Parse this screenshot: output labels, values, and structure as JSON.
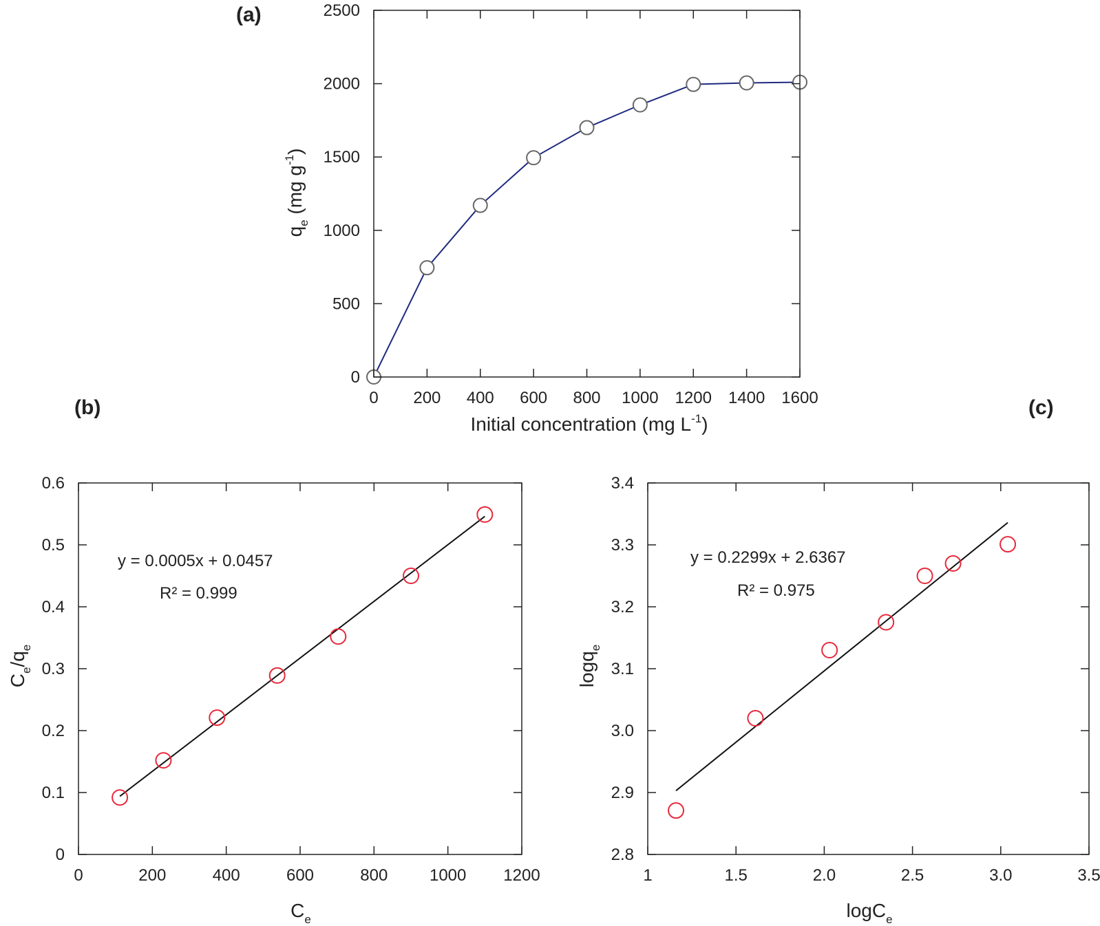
{
  "panels": [
    {
      "id": "a",
      "label": "(a)"
    },
    {
      "id": "b",
      "label": "(b)"
    },
    {
      "id": "c",
      "label": "(c)"
    }
  ],
  "chart_data": [
    {
      "id": "a",
      "type": "line",
      "xlabel": {
        "main": "Initial concentration (mg L",
        "sup": "-1",
        "tail": ")"
      },
      "ylabel": {
        "main": "q",
        "sub": "e",
        "tail": " (mg g",
        "sup": "-1",
        "end": ")"
      },
      "xlim": [
        0,
        1600
      ],
      "ylim": [
        0,
        2500
      ],
      "xticks": [
        0,
        200,
        400,
        600,
        800,
        1000,
        1200,
        1400,
        1600
      ],
      "yticks": [
        0,
        500,
        1000,
        1500,
        2000,
        2500
      ],
      "xtick_labels": [
        "0",
        "200",
        "400",
        "600",
        "800",
        "1000",
        "1200",
        "1400",
        "1600"
      ],
      "ytick_labels": [
        "0",
        "500",
        "1000",
        "1500",
        "2000",
        "2500"
      ],
      "x": [
        0,
        200,
        400,
        600,
        800,
        1000,
        1200,
        1400,
        1600
      ],
      "y": [
        0,
        745,
        1170,
        1495,
        1700,
        1855,
        1995,
        2005,
        2010
      ],
      "colors": {
        "line": "#1f2a80",
        "marker_stroke": "#666666",
        "marker_fill": "#ffffff"
      },
      "grid": false
    },
    {
      "id": "b",
      "type": "scatter",
      "xlabel": {
        "main": "C",
        "sub": "e"
      },
      "ylabel": {
        "main": "C",
        "sub": "e",
        "mid": "/q",
        "sub2": "e"
      },
      "xlim": [
        0,
        1200
      ],
      "ylim": [
        0,
        0.6
      ],
      "xticks": [
        0,
        200,
        400,
        600,
        800,
        1000,
        1200
      ],
      "yticks": [
        0,
        0.1,
        0.2,
        0.3,
        0.4,
        0.5,
        0.6
      ],
      "xtick_labels": [
        "0",
        "200",
        "400",
        "600",
        "800",
        "1000",
        "1200"
      ],
      "ytick_labels": [
        "0",
        "0.1",
        "0.2",
        "0.3",
        "0.4",
        "0.5",
        "0.6"
      ],
      "x": [
        112,
        230,
        375,
        538,
        703,
        900,
        1100
      ],
      "y": [
        0.092,
        0.152,
        0.221,
        0.289,
        0.352,
        0.45,
        0.549
      ],
      "fit": {
        "x": [
          112,
          1100
        ],
        "y": [
          0.094,
          0.546
        ]
      },
      "equation": "y = 0.0005x + 0.0457",
      "r2": "R² = 0.999",
      "colors": {
        "marker": "#e8283a",
        "fit": "#111111"
      },
      "grid": false
    },
    {
      "id": "c",
      "type": "scatter",
      "xlabel": {
        "main": "logC",
        "sub": "e"
      },
      "ylabel": {
        "main": "logq",
        "sub": "e"
      },
      "xlim": [
        1,
        3.5
      ],
      "ylim": [
        2.8,
        3.4
      ],
      "xticks": [
        1,
        1.5,
        2.0,
        2.5,
        3.0,
        3.5
      ],
      "yticks": [
        2.8,
        2.9,
        3.0,
        3.1,
        3.2,
        3.3,
        3.4
      ],
      "xtick_labels": [
        "1",
        "1.5",
        "2.0",
        "2.5",
        "3.0",
        "3.5"
      ],
      "ytick_labels": [
        "2.8",
        "2.9",
        "3.0",
        "3.1",
        "3.2",
        "3.3",
        "3.4"
      ],
      "x": [
        1.16,
        1.61,
        2.03,
        2.35,
        2.57,
        2.73,
        3.04
      ],
      "y": [
        2.871,
        3.02,
        3.13,
        3.175,
        3.25,
        3.27,
        3.301
      ],
      "fit": {
        "x": [
          1.16,
          3.04
        ],
        "y": [
          2.903,
          3.336
        ]
      },
      "equation": "y = 0.2299x + 2.6367",
      "r2": "R² = 0.975",
      "colors": {
        "marker": "#e8283a",
        "fit": "#111111"
      },
      "grid": false
    }
  ]
}
